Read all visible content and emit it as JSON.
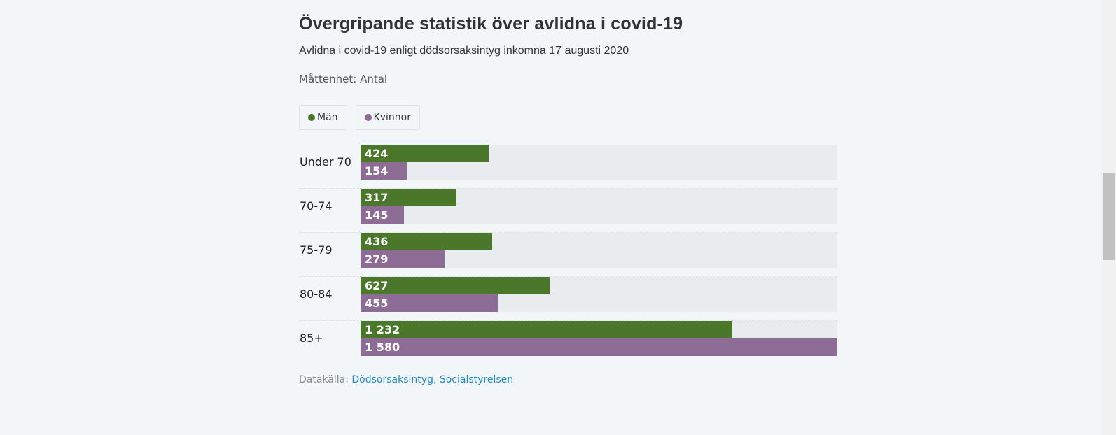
{
  "header": {
    "title": "Övergripande statistik över avlidna i covid-19",
    "subtitle": "Avlidna i covid-19 enligt dödsorsaksintyg inkomna 17 augusti 2020",
    "unit": "Måttenhet: Antal"
  },
  "legend": [
    {
      "label": "Män",
      "color": "#4a772a"
    },
    {
      "label": "Kvinnor",
      "color": "#8d6d96"
    }
  ],
  "source": {
    "label": "Datakälla:",
    "link_text": "Dödsorsaksintyg, Socialstyrelsen"
  },
  "chart_data": {
    "type": "bar",
    "orientation": "horizontal",
    "title": "Övergripande statistik över avlidna i covid-19",
    "subtitle": "Avlidna i covid-19 enligt dödsorsaksintyg inkomna 17 augusti 2020",
    "unit": "Antal",
    "categories": [
      "Under 70",
      "70-74",
      "75-79",
      "80-84",
      "85+"
    ],
    "series": [
      {
        "name": "Män",
        "color": "#4a772a",
        "values": [
          424,
          317,
          436,
          627,
          1232
        ],
        "labels": [
          "424",
          "317",
          "436",
          "627",
          "1 232"
        ]
      },
      {
        "name": "Kvinnor",
        "color": "#8d6d96",
        "values": [
          154,
          145,
          279,
          455,
          1580
        ],
        "labels": [
          "154",
          "145",
          "279",
          "455",
          "1 580"
        ]
      }
    ],
    "xlim": [
      0,
      1580
    ],
    "legend_position": "top-left",
    "grid": false
  }
}
